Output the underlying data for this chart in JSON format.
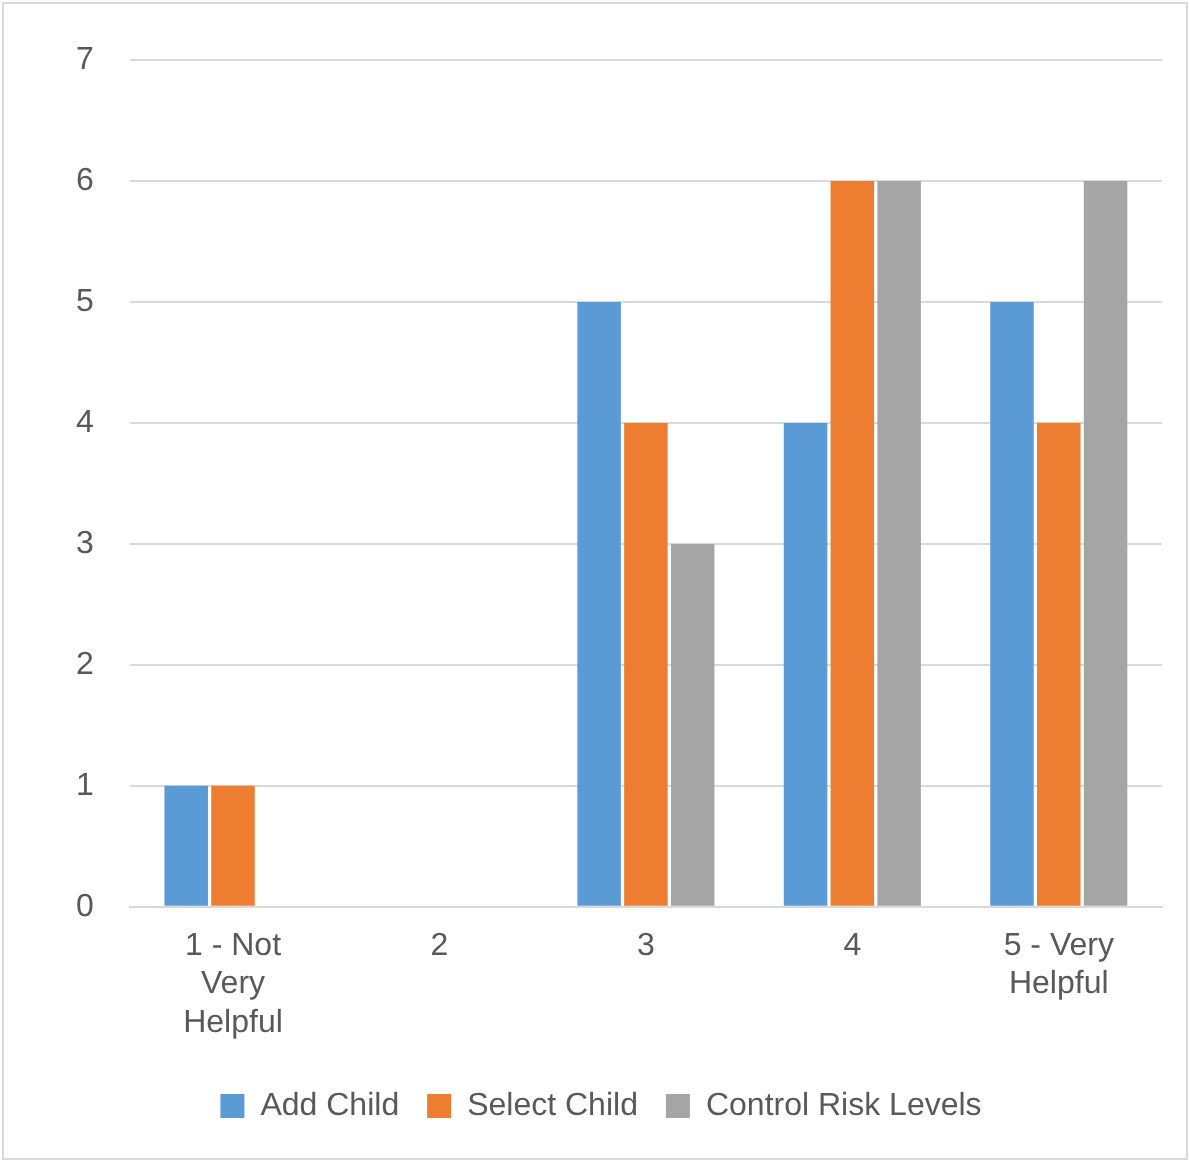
{
  "chart_data": {
    "type": "bar",
    "categories": [
      "1 - Not Very Helpful",
      "2",
      "3",
      "4",
      "5 - Very Helpful"
    ],
    "series": [
      {
        "name": "Add Child",
        "color": "#5b9bd5",
        "values": [
          1,
          0,
          5,
          4,
          5
        ]
      },
      {
        "name": "Select Child",
        "color": "#ed7d31",
        "values": [
          1,
          0,
          4,
          6,
          4
        ]
      },
      {
        "name": "Control Risk Levels",
        "color": "#a5a5a5",
        "values": [
          0,
          0,
          3,
          6,
          6
        ]
      }
    ],
    "ylim": [
      0,
      7
    ],
    "yticks": [
      0,
      1,
      2,
      3,
      4,
      5,
      6,
      7
    ],
    "grid": "y",
    "legend": "bottom"
  }
}
